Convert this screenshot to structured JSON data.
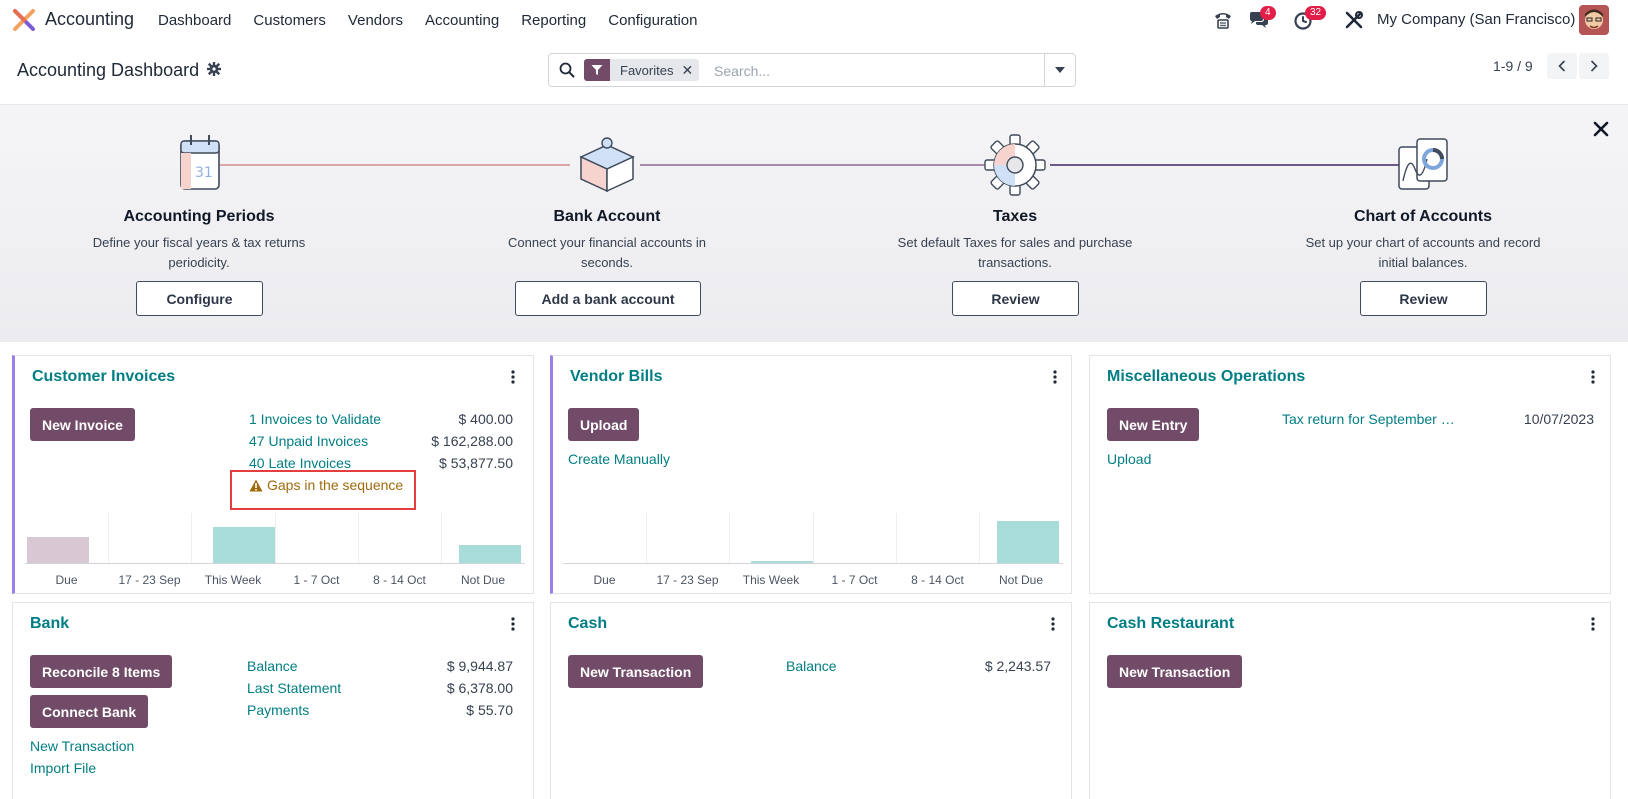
{
  "app": {
    "name": "Accounting"
  },
  "menu": [
    "Dashboard",
    "Customers",
    "Vendors",
    "Accounting",
    "Reporting",
    "Configuration"
  ],
  "systray": {
    "messages_count": "4",
    "activities_count": "32",
    "company": "My Company (San Francisco)"
  },
  "control": {
    "title": "Accounting Dashboard",
    "facet": "Favorites",
    "search_placeholder": "Search...",
    "pager": "1-9 / 9"
  },
  "onboarding": {
    "steps": [
      {
        "title": "Accounting Periods",
        "desc": "Define your fiscal years & tax returns periodicity.",
        "button": "Configure"
      },
      {
        "title": "Bank Account",
        "desc": "Connect your financial accounts in seconds.",
        "button": "Add a bank account"
      },
      {
        "title": "Taxes",
        "desc": "Set default Taxes for sales and purchase transactions.",
        "button": "Review"
      },
      {
        "title": "Chart of Accounts",
        "desc": "Set up your chart of accounts and record initial balances.",
        "button": "Review"
      }
    ]
  },
  "cards": {
    "customer_invoices": {
      "title": "Customer Invoices",
      "button": "New Invoice",
      "rows": [
        {
          "label": "1 Invoices to Validate",
          "amount": "$ 400.00"
        },
        {
          "label": "47 Unpaid Invoices",
          "amount": "$ 162,288.00"
        },
        {
          "label": "40 Late Invoices",
          "amount": "$ 53,877.50"
        }
      ],
      "warning": "Gaps in the sequence"
    },
    "vendor_bills": {
      "title": "Vendor Bills",
      "button": "Upload",
      "link": "Create Manually"
    },
    "misc": {
      "title": "Miscellaneous Operations",
      "button": "New Entry",
      "link": "Upload",
      "entry_label": "Tax return for September …",
      "entry_date": "10/07/2023"
    },
    "bank": {
      "title": "Bank",
      "buttons": [
        "Reconcile 8 Items",
        "Connect Bank"
      ],
      "links": [
        "New Transaction",
        "Import File"
      ],
      "rows": [
        {
          "label": "Balance",
          "amount": "$ 9,944.87"
        },
        {
          "label": "Last Statement",
          "amount": "$ 6,378.00"
        },
        {
          "label": "Payments",
          "amount": "$ 55.70"
        }
      ]
    },
    "cash": {
      "title": "Cash",
      "button": "New Transaction",
      "row": {
        "label": "Balance",
        "amount": "$ 2,243.57"
      }
    },
    "cash_restaurant": {
      "title": "Cash Restaurant",
      "button": "New Transaction"
    }
  },
  "graph_labels": [
    "Due",
    "17 - 23 Sep",
    "This Week",
    "1 - 7 Oct",
    "8 - 14 Oct",
    "Not Due"
  ],
  "colors": {
    "brand": "#714b67",
    "link": "#017e84",
    "accent": "#9b7fe8",
    "bar_past": "#d8c8d3",
    "bar_future": "#a8dcd8",
    "badge": "#e11d48"
  }
}
